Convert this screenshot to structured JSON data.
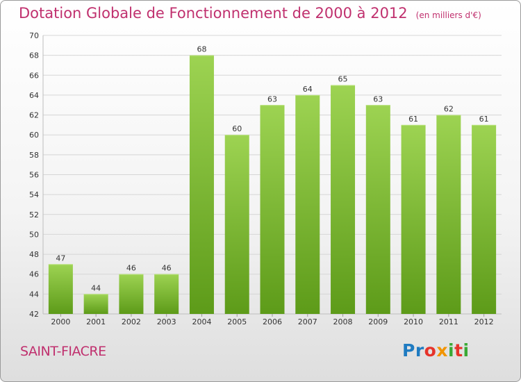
{
  "header": {
    "title": "Dotation Globale de Fonctionnement de 2000 à 2012",
    "subtitle": "(en milliers d'€)"
  },
  "footer": {
    "commune": "SAINT-FIACRE",
    "logo_text": "Proxiti"
  },
  "colors": {
    "title": "#c0306e",
    "bar_light": "#9dd352",
    "bar_dark": "#5d9b19",
    "grid": "#d6d6d6"
  },
  "chart_data": {
    "type": "bar",
    "categories": [
      "2000",
      "2001",
      "2002",
      "2003",
      "2004",
      "2005",
      "2006",
      "2007",
      "2008",
      "2009",
      "2010",
      "2011",
      "2012"
    ],
    "values": [
      47,
      44,
      46,
      46,
      68,
      60,
      63,
      64,
      65,
      63,
      61,
      62,
      61
    ],
    "data_labels": [
      "47",
      "44",
      "46",
      "46",
      "68",
      "60",
      "63",
      "64",
      "65",
      "63",
      "61",
      "62",
      "61"
    ],
    "ylim": [
      42,
      70
    ],
    "yticks": [
      "42",
      "44",
      "46",
      "48",
      "50",
      "52",
      "54",
      "56",
      "58",
      "60",
      "62",
      "64",
      "66",
      "68",
      "70"
    ],
    "grid": true
  }
}
